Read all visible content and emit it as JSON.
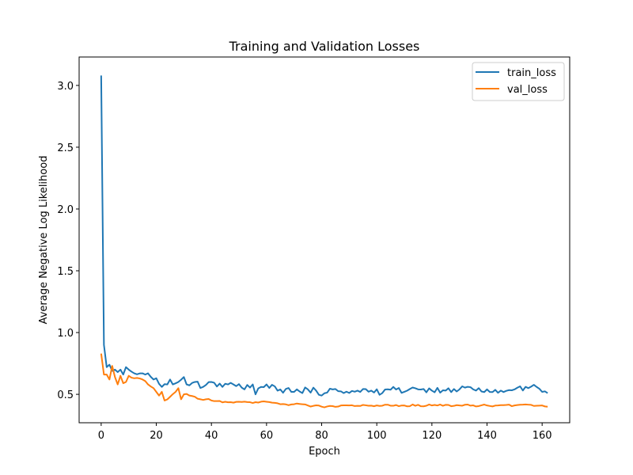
{
  "chart_data": {
    "type": "line",
    "title": "Training and Validation Losses",
    "xlabel": "Epoch",
    "ylabel": "Average Negative Log Likelihood",
    "xlim": [
      -8,
      170
    ],
    "ylim": [
      0.27,
      3.23
    ],
    "xticks": [
      0,
      20,
      40,
      60,
      80,
      100,
      120,
      140,
      160
    ],
    "yticks": [
      0.5,
      1.0,
      1.5,
      2.0,
      2.5,
      3.0
    ],
    "ytick_labels": [
      "0.5",
      "1.0",
      "1.5",
      "2.0",
      "2.5",
      "3.0"
    ],
    "grid": false,
    "legend": "top-right",
    "series": [
      {
        "name": "train_loss",
        "color": "#1f77b4",
        "keypoints": [
          [
            0,
            3.08
          ],
          [
            1,
            0.9
          ],
          [
            2,
            0.72
          ],
          [
            3,
            0.74
          ],
          [
            4,
            0.69
          ],
          [
            5,
            0.7
          ],
          [
            6,
            0.68
          ],
          [
            7,
            0.7
          ],
          [
            8,
            0.66
          ],
          [
            9,
            0.72
          ],
          [
            10,
            0.7
          ],
          [
            12,
            0.67
          ],
          [
            15,
            0.67
          ],
          [
            16,
            0.66
          ],
          [
            17,
            0.67
          ],
          [
            19,
            0.62
          ],
          [
            20,
            0.63
          ],
          [
            22,
            0.56
          ],
          [
            24,
            0.58
          ],
          [
            25,
            0.62
          ],
          [
            26,
            0.58
          ],
          [
            28,
            0.6
          ],
          [
            30,
            0.64
          ],
          [
            31,
            0.58
          ],
          [
            34,
            0.6
          ],
          [
            37,
            0.56
          ],
          [
            40,
            0.6
          ],
          [
            44,
            0.56
          ],
          [
            48,
            0.58
          ],
          [
            52,
            0.54
          ],
          [
            55,
            0.58
          ],
          [
            56,
            0.5
          ],
          [
            58,
            0.56
          ],
          [
            60,
            0.58
          ],
          [
            65,
            0.54
          ],
          [
            70,
            0.52
          ],
          [
            75,
            0.54
          ],
          [
            78,
            0.53
          ],
          [
            80,
            0.49
          ],
          [
            84,
            0.54
          ],
          [
            88,
            0.51
          ],
          [
            93,
            0.53
          ],
          [
            98,
            0.53
          ],
          [
            102,
            0.51
          ],
          [
            106,
            0.56
          ],
          [
            110,
            0.52
          ],
          [
            115,
            0.54
          ],
          [
            120,
            0.53
          ],
          [
            125,
            0.53
          ],
          [
            130,
            0.54
          ],
          [
            135,
            0.54
          ],
          [
            140,
            0.54
          ],
          [
            145,
            0.53
          ],
          [
            150,
            0.54
          ],
          [
            155,
            0.55
          ],
          [
            158,
            0.56
          ],
          [
            160,
            0.52
          ],
          [
            162,
            0.51
          ]
        ],
        "noise": 0.025
      },
      {
        "name": "val_loss",
        "color": "#ff7f0e",
        "keypoints": [
          [
            0,
            0.83
          ],
          [
            1,
            0.66
          ],
          [
            2,
            0.66
          ],
          [
            3,
            0.62
          ],
          [
            4,
            0.73
          ],
          [
            5,
            0.64
          ],
          [
            6,
            0.58
          ],
          [
            7,
            0.65
          ],
          [
            8,
            0.59
          ],
          [
            9,
            0.6
          ],
          [
            10,
            0.65
          ],
          [
            12,
            0.63
          ],
          [
            15,
            0.62
          ],
          [
            17,
            0.58
          ],
          [
            19,
            0.55
          ],
          [
            21,
            0.49
          ],
          [
            22,
            0.52
          ],
          [
            23,
            0.45
          ],
          [
            25,
            0.48
          ],
          [
            27,
            0.52
          ],
          [
            28,
            0.55
          ],
          [
            29,
            0.46
          ],
          [
            30,
            0.5
          ],
          [
            32,
            0.49
          ],
          [
            34,
            0.48
          ],
          [
            36,
            0.46
          ],
          [
            38,
            0.46
          ],
          [
            40,
            0.45
          ],
          [
            45,
            0.44
          ],
          [
            50,
            0.44
          ],
          [
            55,
            0.43
          ],
          [
            60,
            0.44
          ],
          [
            65,
            0.42
          ],
          [
            70,
            0.42
          ],
          [
            75,
            0.41
          ],
          [
            80,
            0.4
          ],
          [
            90,
            0.41
          ],
          [
            100,
            0.41
          ],
          [
            110,
            0.41
          ],
          [
            120,
            0.41
          ],
          [
            130,
            0.41
          ],
          [
            140,
            0.41
          ],
          [
            150,
            0.41
          ],
          [
            160,
            0.41
          ],
          [
            162,
            0.4
          ]
        ],
        "noise": 0.008
      }
    ]
  }
}
